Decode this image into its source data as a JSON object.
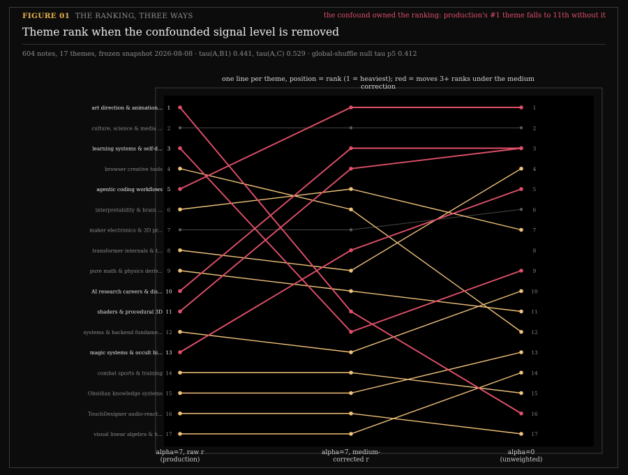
{
  "figure": {
    "number": "FIGURE 01",
    "subtitle": "THE RANKING, THREE WAYS",
    "headline": "the confound owned the ranking: production's #1 theme falls to 11th without it",
    "title": "Theme rank when the confounded signal level is removed",
    "meta": "604 notes, 17 themes, frozen snapshot 2026-08-08  ·  tau(A,B1) 0.441, tau(A,C) 0.529  ·  global-shuffle null tau p5 0.412"
  },
  "colors": {
    "moved": "#e0506a",
    "stable": "#f0c27b",
    "flat": "#5a5a5a",
    "background": "#0c0c0d",
    "plot_bg": "#000000"
  },
  "chart_data": {
    "type": "slope",
    "title": "one line per theme, position = rank (1 = heaviest); red = moves 3+ ranks under the medium correction",
    "columns": [
      [
        "alpha=7, raw r",
        "(production)"
      ],
      [
        "alpha=7, medium-",
        "corrected r"
      ],
      [
        "alpha=0",
        "(unweighted)"
      ]
    ],
    "y_axis": {
      "min": 1,
      "max": 17,
      "inverted": true
    },
    "right_ticks": [
      "1",
      "2",
      "3",
      "4",
      "5",
      "6",
      "7",
      "8",
      "9",
      "10",
      "11",
      "12",
      "13",
      "14",
      "15",
      "16",
      "17"
    ],
    "series": [
      {
        "label": "art direction & animation...",
        "ranks": [
          1,
          11,
          16
        ],
        "category": "moved"
      },
      {
        "label": "culture, science & media ...",
        "ranks": [
          2,
          2,
          2
        ],
        "category": "flat"
      },
      {
        "label": "learning systems & self-d...",
        "ranks": [
          3,
          12,
          9
        ],
        "category": "moved"
      },
      {
        "label": "browser creative tools",
        "ranks": [
          4,
          6,
          12
        ],
        "category": "stable"
      },
      {
        "label": "agentic coding workflows",
        "ranks": [
          5,
          1,
          1
        ],
        "category": "moved"
      },
      {
        "label": "interpretability & brain ...",
        "ranks": [
          6,
          5,
          7
        ],
        "category": "stable"
      },
      {
        "label": "maker electronics & 3D pr...",
        "ranks": [
          7,
          7,
          6
        ],
        "category": "flat"
      },
      {
        "label": "transformer internals & t...",
        "ranks": [
          8,
          9,
          4
        ],
        "category": "stable"
      },
      {
        "label": "pure math & physics deriv...",
        "ranks": [
          9,
          10,
          11
        ],
        "category": "stable"
      },
      {
        "label": "AI research careers & dis...",
        "ranks": [
          10,
          3,
          3
        ],
        "category": "moved"
      },
      {
        "label": "shaders & procedural 3D",
        "ranks": [
          11,
          4,
          3
        ],
        "category": "moved"
      },
      {
        "label": "systems & backend fundame...",
        "ranks": [
          12,
          13,
          10
        ],
        "category": "stable"
      },
      {
        "label": "magic systems & occult hi...",
        "ranks": [
          13,
          8,
          5
        ],
        "category": "moved"
      },
      {
        "label": "combat sports & training",
        "ranks": [
          14,
          14,
          15
        ],
        "category": "stable"
      },
      {
        "label": "Obsidian knowledge systems",
        "ranks": [
          15,
          15,
          13
        ],
        "category": "stable"
      },
      {
        "label": "TouchDesigner audio-react...",
        "ranks": [
          16,
          16,
          17
        ],
        "category": "stable"
      },
      {
        "label": "visual linear algebra & h...",
        "ranks": [
          17,
          17,
          14
        ],
        "category": "stable"
      }
    ]
  }
}
